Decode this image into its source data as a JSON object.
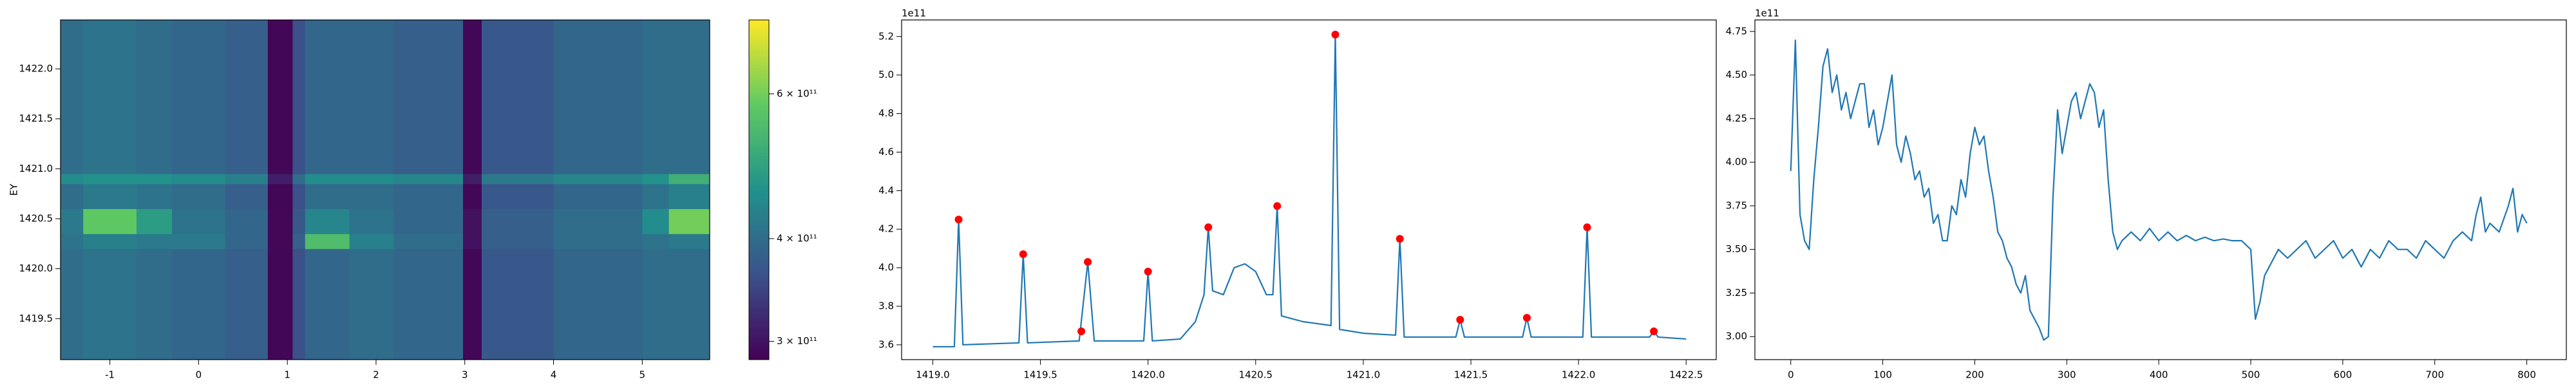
{
  "chart_data": [
    {
      "type": "heatmap",
      "ylabel": "EY",
      "xlim": [
        -1.556,
        5.76
      ],
      "xticks": [
        -1,
        0,
        1,
        2,
        3,
        4,
        5
      ],
      "ylim": [
        1419.09,
        1422.49
      ],
      "yticks": [
        1419.5,
        {
          "value": 1420,
          "label": "1420.0"
        },
        1420.5,
        {
          "value": 1421,
          "label": "1421.0"
        },
        1421.5,
        {
          "value": 1422,
          "label": "1422.0"
        }
      ],
      "x_edges": [
        -1.556,
        -1.3,
        -0.7,
        -0.3,
        0.3,
        0.78,
        1.06,
        1.2,
        1.7,
        2.2,
        2.98,
        3.19,
        4.0,
        5.0,
        5.3,
        5.76
      ],
      "y_edges": [
        1419.09,
        1420.2,
        1420.35,
        1420.6,
        1420.85,
        1420.95,
        1422.49
      ],
      "z": [
        [
          400000000000.0,
          410000000000.0,
          400000000000.0,
          390000000000.0,
          380000000000.0,
          290000000000.0,
          360000000000.0,
          390000000000.0,
          400000000000.0,
          390000000000.0,
          290000000000.0,
          370000000000.0,
          390000000000.0,
          400000000000.0,
          400000000000.0
        ],
        [
          410000000000.0,
          430000000000.0,
          420000000000.0,
          420000000000.0,
          390000000000.0,
          290000000000.0,
          380000000000.0,
          550000000000.0,
          430000000000.0,
          400000000000.0,
          300000000000.0,
          380000000000.0,
          400000000000.0,
          410000000000.0,
          420000000000.0
        ],
        [
          420000000000.0,
          580000000000.0,
          480000000000.0,
          410000000000.0,
          390000000000.0,
          290000000000.0,
          370000000000.0,
          440000000000.0,
          410000000000.0,
          390000000000.0,
          300000000000.0,
          380000000000.0,
          400000000000.0,
          450000000000.0,
          600000000000.0
        ],
        [
          400000000000.0,
          420000000000.0,
          410000000000.0,
          400000000000.0,
          380000000000.0,
          290000000000.0,
          360000000000.0,
          400000000000.0,
          400000000000.0,
          390000000000.0,
          290000000000.0,
          370000000000.0,
          390000000000.0,
          410000000000.0,
          430000000000.0
        ],
        [
          450000000000.0,
          460000000000.0,
          460000000000.0,
          450000000000.0,
          430000000000.0,
          310000000000.0,
          400000000000.0,
          450000000000.0,
          450000000000.0,
          440000000000.0,
          310000000000.0,
          420000000000.0,
          440000000000.0,
          460000000000.0,
          520000000000.0
        ],
        [
          400000000000.0,
          410000000000.0,
          400000000000.0,
          390000000000.0,
          380000000000.0,
          290000000000.0,
          360000000000.0,
          390000000000.0,
          390000000000.0,
          380000000000.0,
          290000000000.0,
          370000000000.0,
          390000000000.0,
          400000000000.0,
          400000000000.0
        ]
      ],
      "colormap": "viridis",
      "colorbar": {
        "log": true,
        "lim": [
          285000000000.0,
          738000000000.0
        ],
        "ticks": [
          {
            "value": 300000000000.0,
            "label": "3 × 10¹¹"
          },
          {
            "value": 400000000000.0,
            "label": "4 × 10¹¹"
          },
          {
            "value": 600000000000.0,
            "label": "6 × 10¹¹"
          }
        ]
      }
    },
    {
      "type": "line",
      "offset_text": "1e11",
      "xlim": [
        1418.855,
        1422.64
      ],
      "xticks": [
        {
          "value": 1419,
          "label": "1419.0"
        },
        1419.5,
        {
          "value": 1420,
          "label": "1420.0"
        },
        1420.5,
        {
          "value": 1421,
          "label": "1421.0"
        },
        1421.5,
        {
          "value": 1422,
          "label": "1422.0"
        },
        1422.5
      ],
      "ylim": [
        3.523,
        5.286
      ],
      "yticks": [
        3.6,
        3.8,
        {
          "value": 4,
          "label": "4.0"
        },
        4.2,
        4.4,
        4.6,
        4.8,
        {
          "value": 5,
          "label": "5.0"
        },
        5.2
      ],
      "series": [
        {
          "color": "#1f77b4",
          "style": "line",
          "x": [
            1419.0,
            1419.1,
            1419.12,
            1419.14,
            1419.4,
            1419.42,
            1419.44,
            1419.68,
            1419.72,
            1419.75,
            1419.98,
            1420.0,
            1420.02,
            1420.15,
            1420.22,
            1420.26,
            1420.28,
            1420.3,
            1420.35,
            1420.4,
            1420.45,
            1420.5,
            1420.55,
            1420.58,
            1420.6,
            1420.62,
            1420.72,
            1420.85,
            1420.87,
            1420.89,
            1421.0,
            1421.15,
            1421.17,
            1421.19,
            1421.43,
            1421.45,
            1421.47,
            1421.74,
            1421.76,
            1421.78,
            1422.02,
            1422.04,
            1422.06,
            1422.33,
            1422.35,
            1422.37,
            1422.5
          ],
          "values": [
            3.59,
            3.59,
            4.25,
            3.6,
            3.61,
            4.07,
            3.61,
            3.62,
            4.03,
            3.62,
            3.62,
            3.98,
            3.62,
            3.63,
            3.72,
            3.86,
            4.21,
            3.88,
            3.86,
            4.0,
            4.02,
            3.98,
            3.86,
            3.86,
            4.32,
            3.75,
            3.72,
            3.7,
            5.21,
            3.68,
            3.66,
            3.65,
            4.15,
            3.64,
            3.64,
            3.73,
            3.64,
            3.64,
            3.74,
            3.64,
            3.64,
            4.21,
            3.64,
            3.64,
            3.67,
            3.64,
            3.63
          ]
        },
        {
          "color": "#ff0000",
          "style": "markers",
          "x": [
            1419.12,
            1419.42,
            1419.69,
            1419.72,
            1420.0,
            1420.28,
            1420.6,
            1420.87,
            1421.17,
            1421.45,
            1421.76,
            1422.04,
            1422.35
          ],
          "values": [
            4.25,
            4.07,
            3.67,
            4.03,
            3.98,
            4.21,
            4.32,
            5.21,
            4.15,
            3.73,
            3.74,
            4.21,
            3.67
          ]
        }
      ]
    },
    {
      "type": "line",
      "offset_text": "1e11",
      "xlim": [
        -39,
        843
      ],
      "xticks": [
        0,
        100,
        200,
        300,
        400,
        500,
        600,
        700,
        800
      ],
      "ylim": [
        2.868,
        4.816
      ],
      "yticks": [
        {
          "value": 3,
          "label": "3.00"
        },
        {
          "value": 3.25,
          "label": "3.25"
        },
        {
          "value": 3.5,
          "label": "3.50"
        },
        {
          "value": 3.75,
          "label": "3.75"
        },
        {
          "value": 4,
          "label": "4.00"
        },
        {
          "value": 4.25,
          "label": "4.25"
        },
        {
          "value": 4.5,
          "label": "4.50"
        },
        {
          "value": 4.75,
          "label": "4.75"
        }
      ],
      "series": [
        {
          "color": "#1f77b4",
          "style": "line",
          "x": [
            0,
            5,
            10,
            15,
            20,
            25,
            30,
            35,
            40,
            45,
            50,
            55,
            60,
            65,
            70,
            75,
            80,
            85,
            90,
            95,
            100,
            105,
            110,
            115,
            120,
            125,
            130,
            135,
            140,
            145,
            150,
            155,
            160,
            165,
            170,
            175,
            180,
            185,
            190,
            195,
            200,
            205,
            210,
            215,
            220,
            225,
            230,
            235,
            240,
            245,
            250,
            255,
            260,
            265,
            270,
            275,
            280,
            285,
            290,
            295,
            300,
            305,
            310,
            315,
            320,
            325,
            330,
            335,
            340,
            345,
            350,
            355,
            360,
            370,
            380,
            390,
            400,
            410,
            420,
            430,
            440,
            450,
            460,
            470,
            480,
            490,
            500,
            505,
            510,
            515,
            520,
            530,
            540,
            550,
            560,
            570,
            580,
            590,
            600,
            610,
            620,
            630,
            640,
            650,
            660,
            670,
            680,
            690,
            700,
            710,
            720,
            730,
            740,
            745,
            750,
            755,
            760,
            770,
            780,
            785,
            790,
            795,
            800
          ],
          "values": [
            3.95,
            4.7,
            3.7,
            3.55,
            3.5,
            3.9,
            4.2,
            4.55,
            4.65,
            4.4,
            4.5,
            4.3,
            4.4,
            4.25,
            4.35,
            4.45,
            4.45,
            4.2,
            4.3,
            4.1,
            4.2,
            4.35,
            4.5,
            4.1,
            4.0,
            4.15,
            4.05,
            3.9,
            3.95,
            3.8,
            3.85,
            3.65,
            3.7,
            3.55,
            3.55,
            3.75,
            3.7,
            3.9,
            3.8,
            4.05,
            4.2,
            4.1,
            4.15,
            3.95,
            3.8,
            3.6,
            3.55,
            3.45,
            3.4,
            3.3,
            3.25,
            3.35,
            3.15,
            3.1,
            3.05,
            2.98,
            3.0,
            3.8,
            4.3,
            4.05,
            4.2,
            4.35,
            4.4,
            4.25,
            4.35,
            4.45,
            4.4,
            4.2,
            4.3,
            3.9,
            3.6,
            3.5,
            3.55,
            3.6,
            3.55,
            3.62,
            3.55,
            3.6,
            3.55,
            3.58,
            3.55,
            3.57,
            3.55,
            3.56,
            3.55,
            3.55,
            3.5,
            3.1,
            3.2,
            3.35,
            3.4,
            3.5,
            3.45,
            3.5,
            3.55,
            3.45,
            3.5,
            3.55,
            3.45,
            3.5,
            3.4,
            3.5,
            3.45,
            3.55,
            3.5,
            3.5,
            3.45,
            3.55,
            3.5,
            3.45,
            3.55,
            3.6,
            3.55,
            3.7,
            3.8,
            3.6,
            3.65,
            3.6,
            3.75,
            3.85,
            3.6,
            3.7,
            3.65
          ]
        }
      ]
    }
  ]
}
